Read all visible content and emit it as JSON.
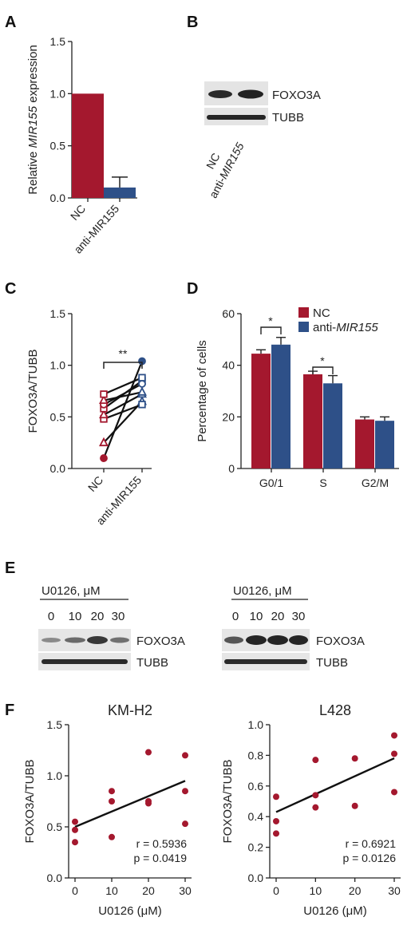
{
  "colors": {
    "nc": "#a4182e",
    "anti": "#2e5088",
    "axis": "#222222",
    "line": "#111111",
    "band": "#2a2a2a"
  },
  "panel_labels": {
    "a": "A",
    "b": "B",
    "c": "C",
    "d": "D",
    "e": "E",
    "f": "F"
  },
  "panel_b": {
    "bands": [
      "FOXO3A",
      "TUBB"
    ],
    "lanes": [
      "NC",
      "anti-MIR155"
    ],
    "lane_italic": "MIR155"
  },
  "panel_e": {
    "left": {
      "treatment": "U0126, μM",
      "doses": [
        "0",
        "10",
        "20",
        "30"
      ],
      "bands": [
        "FOXO3A",
        "TUBB"
      ]
    },
    "right": {
      "treatment": "U0126, μM",
      "doses": [
        "0",
        "10",
        "20",
        "30"
      ],
      "bands": [
        "FOXO3A",
        "TUBB"
      ]
    }
  },
  "chart_data": [
    {
      "id": "A",
      "type": "bar",
      "categories": [
        "NC",
        "anti-MIR155"
      ],
      "values": [
        1.0,
        0.1
      ],
      "errors": [
        0,
        0.1
      ],
      "ylabel": "Relative MIR155 expression",
      "ylim": [
        0,
        1.5
      ],
      "yticks": [
        "0.0",
        "0.5",
        "1.0",
        "1.5"
      ]
    },
    {
      "id": "C",
      "type": "scatter",
      "categories": [
        "NC",
        "anti-MIR155"
      ],
      "pairs": [
        [
          0.1,
          1.04
        ],
        [
          0.25,
          0.65
        ],
        [
          0.48,
          0.62
        ],
        [
          0.52,
          0.72
        ],
        [
          0.58,
          0.85
        ],
        [
          0.62,
          0.82
        ],
        [
          0.66,
          0.74
        ],
        [
          0.72,
          0.88
        ]
      ],
      "ylabel": "FOXO3A/TUBB",
      "ylim": [
        0,
        1.5
      ],
      "yticks": [
        "0.0",
        "0.5",
        "1.0",
        "1.5"
      ],
      "significance": "**"
    },
    {
      "id": "D",
      "type": "bar",
      "categories": [
        "G0/1",
        "S",
        "G2/M"
      ],
      "series": [
        {
          "name": "NC",
          "values": [
            44.5,
            36.5,
            19
          ],
          "errors": [
            1.5,
            1.2,
            1.0
          ]
        },
        {
          "name": "anti-MIR155",
          "values": [
            48,
            33,
            18.5
          ],
          "errors": [
            2.8,
            3.0,
            1.5
          ]
        }
      ],
      "ylabel": "Percentage of cells",
      "ylim": [
        0,
        60
      ],
      "yticks": [
        "0",
        "20",
        "40",
        "60"
      ],
      "significance": [
        "*",
        "*"
      ],
      "legend_position": "top-right"
    },
    {
      "id": "F-left",
      "type": "scatter",
      "title": "KM-H2",
      "x": [
        0,
        0,
        0,
        10,
        10,
        10,
        20,
        20,
        20,
        30,
        30,
        30
      ],
      "y": [
        0.35,
        0.47,
        0.55,
        0.4,
        0.75,
        0.85,
        0.73,
        0.75,
        1.23,
        0.53,
        0.85,
        1.2
      ],
      "fit": {
        "intercept": 0.5,
        "slope": 0.015
      },
      "xlabel": "U0126 (μM)",
      "ylabel": "FOXO3A/TUBB",
      "xticks": [
        "0",
        "10",
        "20",
        "30"
      ],
      "yticks": [
        "0.0",
        "0.5",
        "1.0",
        "1.5"
      ],
      "xlim": [
        0,
        30
      ],
      "ylim": [
        0,
        1.5
      ],
      "r_text": "r = 0.5936",
      "p_text": "p = 0.0419"
    },
    {
      "id": "F-right",
      "type": "scatter",
      "title": "L428",
      "x": [
        0,
        0,
        0,
        10,
        10,
        10,
        20,
        20,
        30,
        30,
        30
      ],
      "y": [
        0.29,
        0.37,
        0.53,
        0.46,
        0.54,
        0.77,
        0.47,
        0.78,
        0.56,
        0.81,
        0.93
      ],
      "fit": {
        "intercept": 0.43,
        "slope": 0.0117
      },
      "xlabel": "U0126 (μM)",
      "ylabel": "FOXO3A/TUBB",
      "xticks": [
        "0",
        "10",
        "20",
        "30"
      ],
      "yticks": [
        "0.0",
        "0.2",
        "0.4",
        "0.6",
        "0.8",
        "1.0"
      ],
      "xlim": [
        0,
        30
      ],
      "ylim": [
        0,
        1.0
      ],
      "r_text": "r = 0.6921",
      "p_text": "p = 0.0126"
    }
  ]
}
